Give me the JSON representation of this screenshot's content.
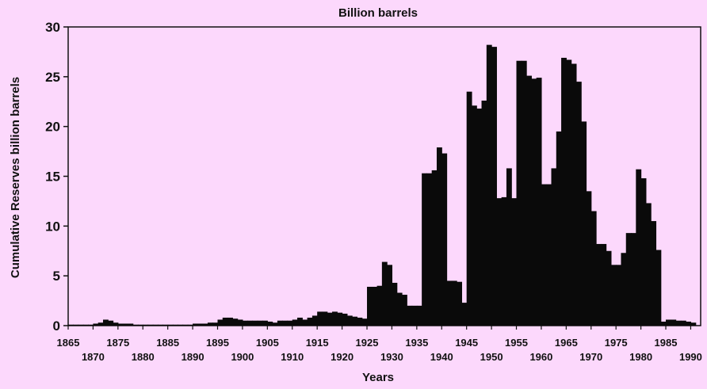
{
  "chart_data": {
    "type": "bar",
    "title": "Billion barrels",
    "xlabel": "Years",
    "ylabel": "Cumulative Reserves billion barrels",
    "xlim": [
      1865,
      1992
    ],
    "ylim": [
      0,
      30
    ],
    "yticks": [
      0,
      5,
      10,
      15,
      20,
      25,
      30
    ],
    "xticks_upper": [
      1865,
      1875,
      1885,
      1895,
      1905,
      1915,
      1925,
      1935,
      1945,
      1955,
      1965,
      1975,
      1985
    ],
    "xticks_lower": [
      1870,
      1880,
      1890,
      1900,
      1910,
      1920,
      1930,
      1940,
      1950,
      1960,
      1970,
      1980,
      1990
    ],
    "x": [
      1865,
      1866,
      1867,
      1868,
      1869,
      1870,
      1871,
      1872,
      1873,
      1874,
      1875,
      1876,
      1877,
      1878,
      1879,
      1880,
      1881,
      1882,
      1883,
      1884,
      1885,
      1886,
      1887,
      1888,
      1889,
      1890,
      1891,
      1892,
      1893,
      1894,
      1895,
      1896,
      1897,
      1898,
      1899,
      1900,
      1901,
      1902,
      1903,
      1904,
      1905,
      1906,
      1907,
      1908,
      1909,
      1910,
      1911,
      1912,
      1913,
      1914,
      1915,
      1916,
      1917,
      1918,
      1919,
      1920,
      1921,
      1922,
      1923,
      1924,
      1925,
      1926,
      1927,
      1928,
      1929,
      1930,
      1931,
      1932,
      1933,
      1934,
      1935,
      1936,
      1937,
      1938,
      1939,
      1940,
      1941,
      1942,
      1943,
      1944,
      1945,
      1946,
      1947,
      1948,
      1949,
      1950,
      1951,
      1952,
      1953,
      1954,
      1955,
      1956,
      1957,
      1958,
      1959,
      1960,
      1961,
      1962,
      1963,
      1964,
      1965,
      1966,
      1967,
      1968,
      1969,
      1970,
      1971,
      1972,
      1973,
      1974,
      1975,
      1976,
      1977,
      1978,
      1979,
      1980,
      1981,
      1982,
      1983,
      1984,
      1985,
      1986,
      1987,
      1988,
      1989,
      1990
    ],
    "values": [
      0.1,
      0.1,
      0.1,
      0.1,
      0.1,
      0.2,
      0.3,
      0.6,
      0.5,
      0.3,
      0.2,
      0.2,
      0.2,
      0.1,
      0.1,
      0.1,
      0.1,
      0.1,
      0.1,
      0.1,
      0.1,
      0.1,
      0.1,
      0.1,
      0.1,
      0.2,
      0.2,
      0.2,
      0.3,
      0.3,
      0.6,
      0.8,
      0.8,
      0.7,
      0.6,
      0.5,
      0.5,
      0.5,
      0.5,
      0.5,
      0.4,
      0.3,
      0.5,
      0.5,
      0.5,
      0.6,
      0.8,
      0.6,
      0.8,
      1.0,
      1.4,
      1.4,
      1.3,
      1.4,
      1.3,
      1.2,
      1.0,
      0.9,
      0.8,
      0.7,
      3.9,
      3.9,
      4.0,
      6.4,
      6.1,
      4.3,
      3.3,
      3.1,
      2.0,
      2.0,
      2.0,
      15.3,
      15.3,
      15.6,
      17.9,
      17.3,
      4.5,
      4.5,
      4.4,
      2.3,
      23.5,
      22.1,
      21.8,
      22.6,
      28.2,
      28.0,
      12.8,
      12.9,
      15.8,
      12.8,
      26.6,
      26.6,
      25.1,
      24.8,
      24.9,
      14.2,
      14.2,
      15.8,
      19.5,
      26.9,
      26.7,
      26.3,
      24.5,
      20.5,
      13.5,
      11.5,
      8.2,
      8.2,
      7.5,
      6.1,
      6.1,
      7.3,
      9.3,
      9.3,
      15.7,
      14.8,
      12.3,
      10.5,
      7.6,
      0.4,
      0.6,
      0.6,
      0.5,
      0.5,
      0.4,
      0.3
    ]
  }
}
